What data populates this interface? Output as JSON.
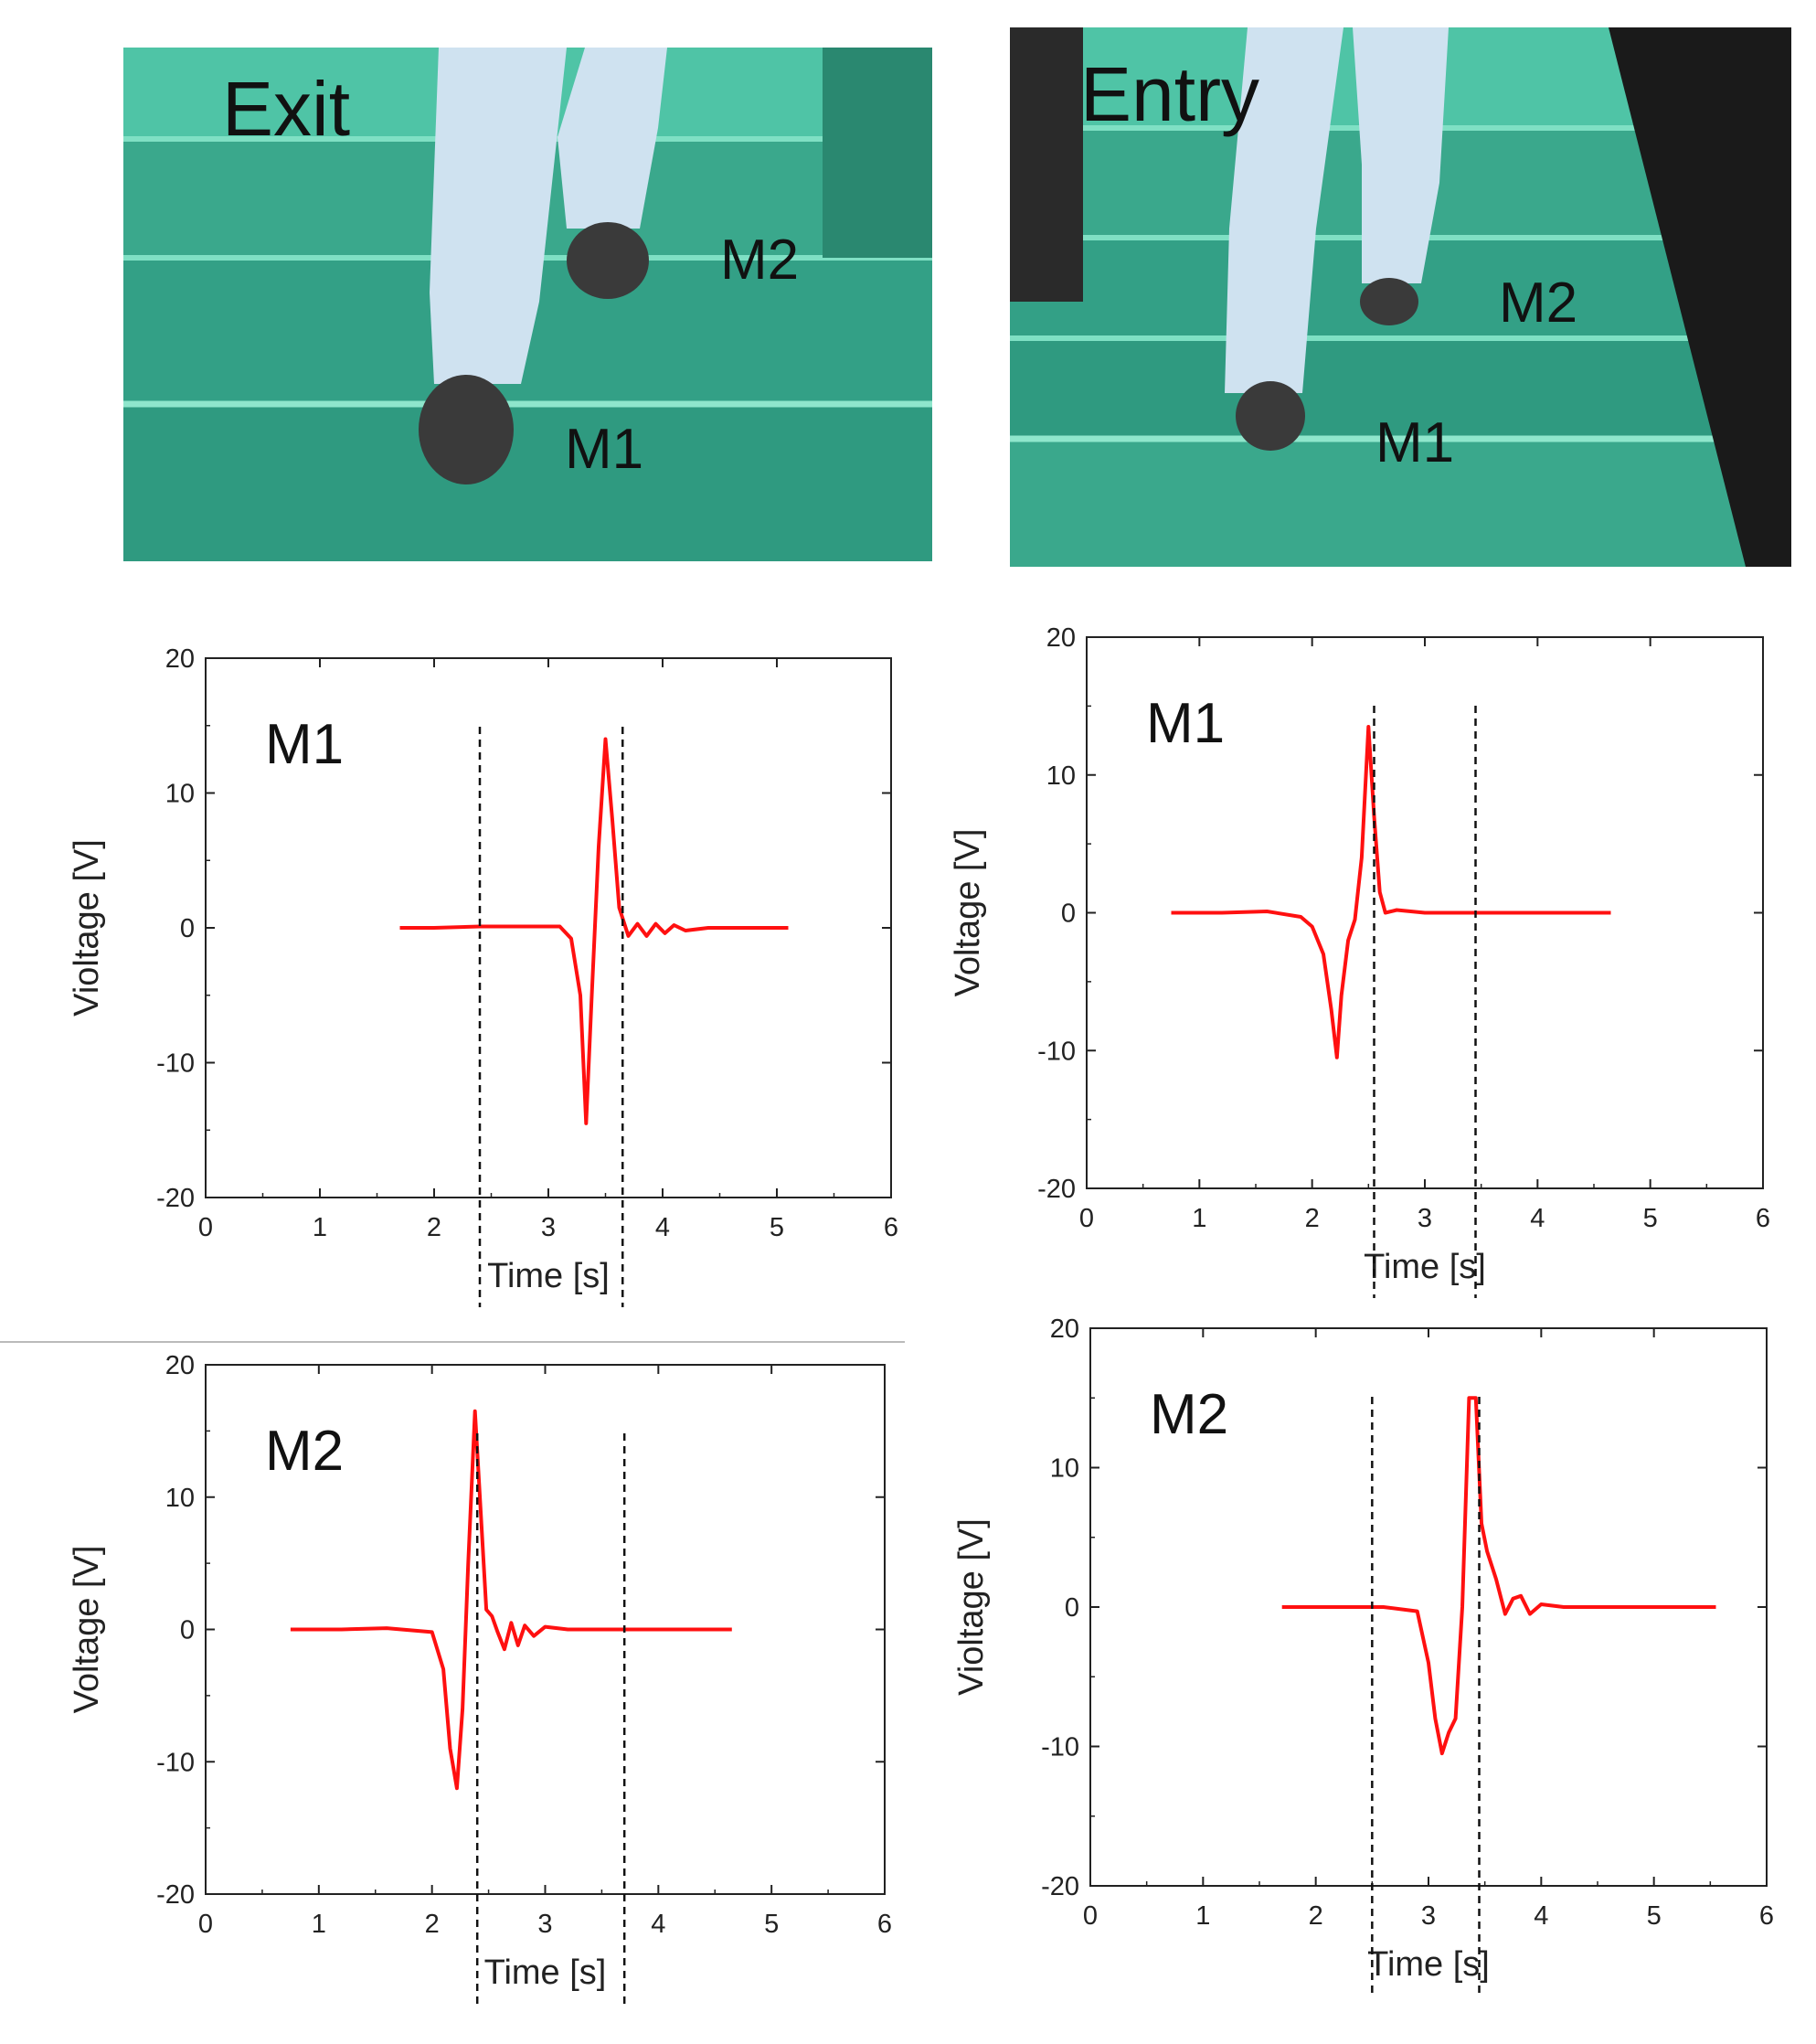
{
  "photos": [
    {
      "name": "exit-photo",
      "labels": {
        "scenario": "Exit",
        "m1": "M1",
        "m2": "M2"
      }
    },
    {
      "name": "entry-photo",
      "labels": {
        "scenario": "Entry",
        "m1": "M1",
        "m2": "M2"
      }
    }
  ],
  "colors": {
    "signal": "#ff1010",
    "axis": "#222222",
    "stair": "#3aa88c",
    "stair_dark": "#2a8870",
    "riser": "#4fc4a6",
    "jeans": "#cfe2f0",
    "shoe": "#3a3a3a",
    "rail": "#1a1a1a"
  },
  "chart_data": [
    {
      "panel": "exit-m1",
      "type": "line",
      "label": "M1",
      "xlabel": "Time [s]",
      "ylabel": "Violtage [V]",
      "xlim": [
        0,
        6
      ],
      "ylim": [
        -20,
        20
      ],
      "xticks": [
        0,
        1,
        2,
        3,
        4,
        5,
        6
      ],
      "yticks": [
        -20,
        -10,
        0,
        10,
        20
      ],
      "grid": false,
      "dashed_x": [
        2.4,
        3.65
      ],
      "series": [
        {
          "x": [
            1.7,
            2.0,
            2.4,
            2.8,
            3.1,
            3.2,
            3.28,
            3.33,
            3.38,
            3.44,
            3.5,
            3.56,
            3.62,
            3.7,
            3.78,
            3.86,
            3.94,
            4.02,
            4.1,
            4.2,
            4.4,
            4.8,
            5.1
          ],
          "y": [
            0,
            0,
            0.1,
            0.1,
            0.1,
            -0.8,
            -5,
            -14.5,
            -5,
            6,
            14,
            8,
            1.5,
            -0.6,
            0.3,
            -0.6,
            0.3,
            -0.4,
            0.2,
            -0.2,
            0,
            0,
            0
          ]
        }
      ]
    },
    {
      "panel": "exit-m2",
      "type": "line",
      "label": "M2",
      "xlabel": "Time [s]",
      "ylabel": "Voltage [V]",
      "xlim": [
        0,
        6
      ],
      "ylim": [
        -20,
        20
      ],
      "xticks": [
        0,
        1,
        2,
        3,
        4,
        5,
        6
      ],
      "yticks": [
        -20,
        -10,
        0,
        10,
        20
      ],
      "grid": false,
      "dashed_x": [
        2.4,
        3.7
      ],
      "series": [
        {
          "x": [
            0.75,
            1.2,
            1.6,
            2.0,
            2.1,
            2.16,
            2.22,
            2.27,
            2.32,
            2.38,
            2.43,
            2.48,
            2.53,
            2.58,
            2.64,
            2.7,
            2.76,
            2.82,
            2.9,
            3.0,
            3.2,
            3.6,
            4.2,
            4.65
          ],
          "y": [
            0,
            0,
            0.1,
            -0.2,
            -3,
            -9,
            -12,
            -6,
            5,
            16.5,
            9,
            1.5,
            1,
            -0.2,
            -1.5,
            0.5,
            -1.2,
            0.3,
            -0.5,
            0.2,
            0,
            0,
            0,
            0
          ]
        }
      ]
    },
    {
      "panel": "entry-m1",
      "type": "line",
      "label": "M1",
      "xlabel": "Time [s]",
      "ylabel": "Voltage [V]",
      "xlim": [
        0,
        6
      ],
      "ylim": [
        -20,
        20
      ],
      "xticks": [
        0,
        1,
        2,
        3,
        4,
        5,
        6
      ],
      "yticks": [
        -20,
        -10,
        0,
        10,
        20
      ],
      "grid": false,
      "dashed_x": [
        2.55,
        3.45
      ],
      "series": [
        {
          "x": [
            0.75,
            1.2,
            1.6,
            1.9,
            2.0,
            2.1,
            2.17,
            2.22,
            2.26,
            2.32,
            2.38,
            2.44,
            2.5,
            2.55,
            2.6,
            2.65,
            2.75,
            3.0,
            3.5,
            4.0,
            4.65
          ],
          "y": [
            0,
            0,
            0.1,
            -0.3,
            -1,
            -3,
            -7,
            -10.5,
            -6,
            -2,
            -0.5,
            4,
            13.5,
            7,
            1.5,
            0,
            0.2,
            0,
            0,
            0,
            0
          ]
        }
      ]
    },
    {
      "panel": "entry-m2",
      "type": "line",
      "label": "M2",
      "xlabel": "Time [s]",
      "ylabel": "Violtage [V]",
      "xlim": [
        0,
        6
      ],
      "ylim": [
        -20,
        20
      ],
      "xticks": [
        0,
        1,
        2,
        3,
        4,
        5,
        6
      ],
      "yticks": [
        -20,
        -10,
        0,
        10,
        20
      ],
      "grid": false,
      "dashed_x": [
        2.5,
        3.45
      ],
      "series": [
        {
          "x": [
            1.7,
            2.2,
            2.6,
            2.9,
            3.0,
            3.06,
            3.12,
            3.18,
            3.24,
            3.3,
            3.36,
            3.42,
            3.47,
            3.52,
            3.6,
            3.68,
            3.75,
            3.82,
            3.9,
            4.0,
            4.2,
            4.6,
            5.0,
            5.55
          ],
          "y": [
            0,
            0,
            0,
            -0.3,
            -4,
            -8,
            -10.5,
            -9,
            -8,
            0,
            15,
            15,
            6,
            4,
            2,
            -0.5,
            0.6,
            0.8,
            -0.5,
            0.2,
            0,
            0,
            0,
            0
          ]
        }
      ]
    }
  ]
}
